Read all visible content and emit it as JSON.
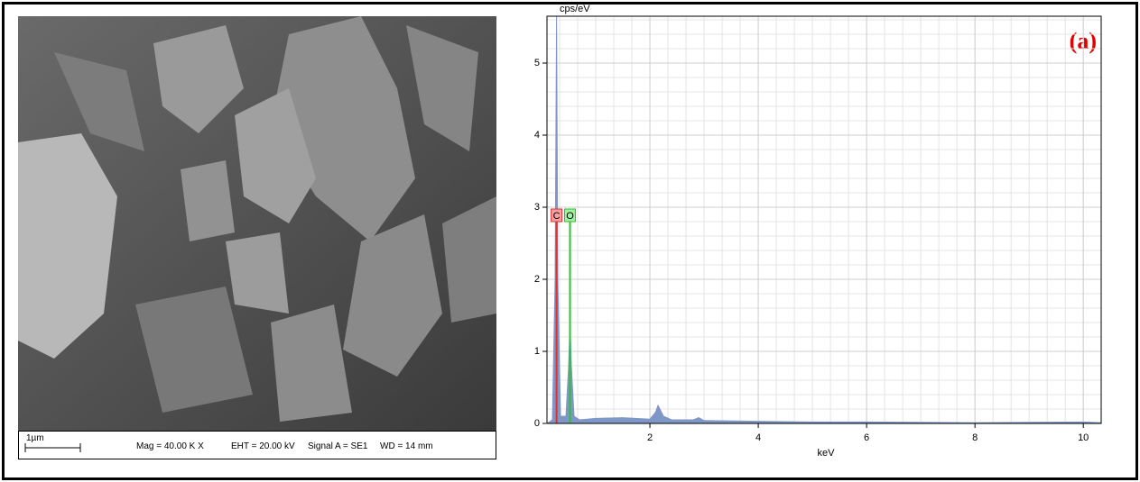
{
  "sem": {
    "scale_bar": "1µm",
    "mag": "Mag = 40.00 K X",
    "eht": "EHT = 20.00 kV",
    "signal": "Signal A = SE1",
    "wd": "WD = 14 mm"
  },
  "chart_data": {
    "type": "area",
    "panel_label": "(a)",
    "x_label": "keV",
    "y_label": "cps/eV",
    "color": "#7f97c6",
    "x": [
      0.1,
      0.2,
      0.25,
      0.277,
      0.3,
      0.35,
      0.45,
      0.5,
      0.525,
      0.55,
      0.6,
      0.7,
      1.0,
      1.5,
      2.0,
      2.1,
      2.15,
      2.25,
      2.4,
      2.8,
      2.9,
      3.0,
      4.0,
      5.0,
      6.0,
      8.0,
      10.0,
      10.33
    ],
    "values": [
      0,
      0.05,
      2,
      5.65,
      2,
      0.1,
      0.1,
      0.8,
      1.4,
      0.8,
      0.1,
      0.05,
      0.07,
      0.08,
      0.06,
      0.15,
      0.25,
      0.1,
      0.05,
      0.05,
      0.08,
      0.04,
      0.03,
      0.02,
      0.02,
      0.01,
      0.02,
      0.01
    ],
    "markers": [
      {
        "label": "C",
        "x": 0.277,
        "color": "#e03030",
        "fill": "#f4a0a0"
      },
      {
        "label": "O",
        "x": 0.525,
        "color": "#30c030",
        "fill": "#a0f0a0"
      }
    ],
    "xlim": [
      0.1,
      10.33
    ],
    "ylim": [
      0,
      5.65
    ],
    "xticks": [
      2,
      4,
      6,
      8,
      10
    ],
    "yticks": [
      0,
      1,
      2,
      3,
      4,
      5
    ],
    "grid": true
  }
}
